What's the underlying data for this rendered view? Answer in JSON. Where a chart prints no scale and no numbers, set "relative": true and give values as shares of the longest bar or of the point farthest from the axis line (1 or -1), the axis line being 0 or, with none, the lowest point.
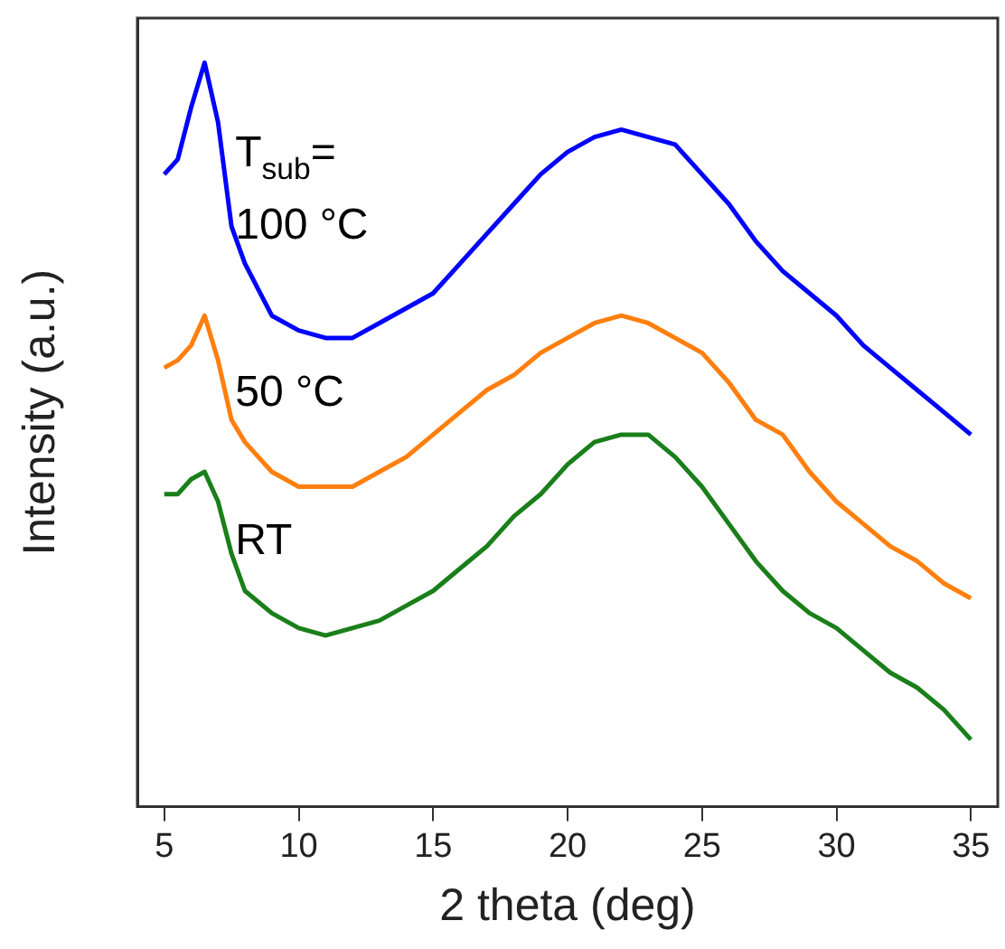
{
  "chart_data": {
    "type": "line",
    "relative": true,
    "xlabel": "2 theta (deg)",
    "ylabel": "Intensity (a.u.)",
    "annotations": [
      "T$_{sub}$="
    ],
    "x": [
      5,
      5.5,
      6,
      6.5,
      7,
      7.5,
      8,
      9,
      10,
      11,
      12,
      13,
      14,
      15,
      16,
      17,
      18,
      19,
      20,
      21,
      22,
      23,
      24,
      25,
      26,
      27,
      28,
      29,
      30,
      31,
      32,
      33,
      34,
      35
    ],
    "xlim": [
      4,
      36
    ],
    "xticks": [
      5,
      10,
      15,
      20,
      25,
      30,
      35
    ],
    "legend": false,
    "grid": false,
    "marker": "none",
    "line_style": "solid",
    "series": [
      {
        "name": "100 °C",
        "color": "#0000ff",
        "values": [
          0.85,
          0.87,
          0.94,
          1.0,
          0.92,
          0.78,
          0.73,
          0.66,
          0.64,
          0.63,
          0.63,
          0.65,
          0.67,
          0.69,
          0.73,
          0.77,
          0.81,
          0.85,
          0.88,
          0.9,
          0.91,
          0.9,
          0.89,
          0.85,
          0.81,
          0.76,
          0.72,
          0.69,
          0.66,
          0.62,
          0.59,
          0.56,
          0.53,
          0.5
        ]
      },
      {
        "name": "50 °C",
        "color": "#ff7f0e",
        "values": [
          0.59,
          0.6,
          0.62,
          0.66,
          0.6,
          0.52,
          0.49,
          0.45,
          0.43,
          0.43,
          0.43,
          0.45,
          0.47,
          0.5,
          0.53,
          0.56,
          0.58,
          0.61,
          0.63,
          0.65,
          0.66,
          0.65,
          0.63,
          0.61,
          0.57,
          0.52,
          0.5,
          0.45,
          0.41,
          0.38,
          0.35,
          0.33,
          0.3,
          0.28
        ]
      },
      {
        "name": "RT",
        "color": "#1a7f1a",
        "values": [
          0.42,
          0.42,
          0.44,
          0.45,
          0.41,
          0.34,
          0.29,
          0.26,
          0.24,
          0.23,
          0.24,
          0.25,
          0.27,
          0.29,
          0.32,
          0.35,
          0.39,
          0.42,
          0.46,
          0.49,
          0.5,
          0.5,
          0.47,
          0.43,
          0.38,
          0.33,
          0.29,
          0.26,
          0.24,
          0.21,
          0.18,
          0.16,
          0.13,
          0.09
        ]
      }
    ]
  }
}
